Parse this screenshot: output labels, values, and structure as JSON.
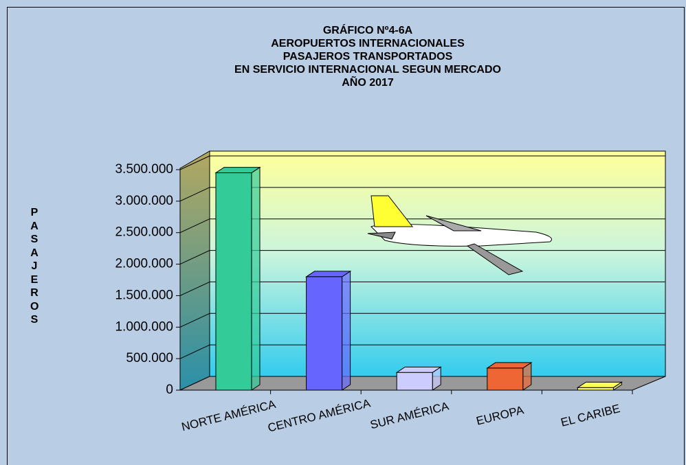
{
  "chart_data": {
    "type": "bar3d",
    "title": [
      "GRÁFICO Nº4-6A",
      "AEROPUERTOS  INTERNACIONALES",
      "PASAJEROS  TRANSPORTADOS",
      "EN SERVICIO INTERNACIONAL  SEGUN  MERCADO",
      "AÑO 2017"
    ],
    "y_label": "PASAJEROS",
    "categories": [
      "NORTE AMÉRICA",
      "CENTRO AMÉRICA",
      "SUR AMÉRICA",
      "EUROPA",
      "EL CARIBE"
    ],
    "values": [
      3450000,
      1800000,
      280000,
      350000,
      40000
    ],
    "colors": [
      "#33cc99",
      "#6666ff",
      "#ccccff",
      "#ee6633",
      "#ffff55"
    ],
    "ylim": [
      0,
      3500000
    ],
    "yticks": [
      0,
      {
        "value": 500000,
        "label": "500.000"
      },
      {
        "value": 1000000,
        "label": "1.000.000"
      },
      {
        "value": 1500000,
        "label": "1.500.000"
      },
      {
        "value": 2000000,
        "label": "2.000.000"
      },
      {
        "value": 2500000,
        "label": "2.500.000"
      },
      {
        "value": 3000000,
        "label": "3.000.000"
      },
      {
        "value": 3500000,
        "label": "3.500.000"
      }
    ],
    "grid": true
  }
}
